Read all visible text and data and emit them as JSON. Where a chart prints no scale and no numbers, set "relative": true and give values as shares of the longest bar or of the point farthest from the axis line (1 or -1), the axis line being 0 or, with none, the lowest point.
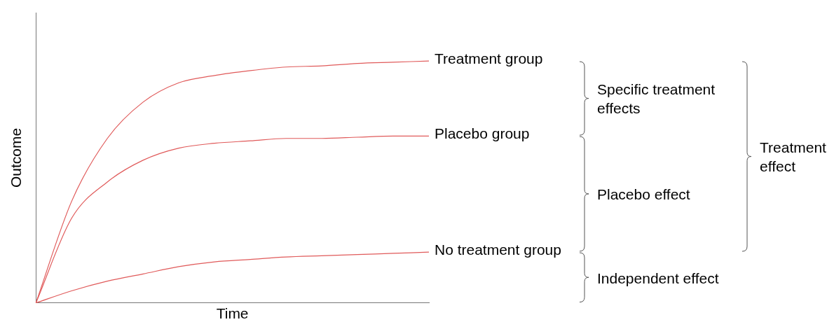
{
  "chart_data": {
    "type": "line",
    "relative": true,
    "xlabel": "Time",
    "ylabel": "Outcome",
    "legend": false,
    "grid": false,
    "marker": "none",
    "line_style": "solid",
    "categories": [
      null,
      null,
      null,
      null,
      null,
      null,
      null,
      null,
      null,
      null,
      null,
      null
    ],
    "series": [
      {
        "name": "Treatment group",
        "color": "#e05a5a",
        "values": [
          0,
          0.42,
          0.68,
          0.83,
          0.91,
          0.94,
          0.96,
          0.975,
          0.98,
          0.99,
          0.995,
          1
        ]
      },
      {
        "name": "Placebo group",
        "color": "#e05a5a",
        "values": [
          0,
          0.35,
          0.5,
          0.59,
          0.64,
          0.66,
          0.67,
          0.68,
          0.68,
          0.685,
          0.69,
          0.69
        ]
      },
      {
        "name": "No treatment group",
        "color": "#e05a5a",
        "values": [
          0,
          0.05,
          0.09,
          0.12,
          0.15,
          0.17,
          0.18,
          0.19,
          0.195,
          0.2,
          0.205,
          0.21
        ]
      }
    ],
    "annotations": [
      "Specific treatment effects",
      "Placebo effect",
      "Independent effect",
      "Treatment effect"
    ]
  }
}
